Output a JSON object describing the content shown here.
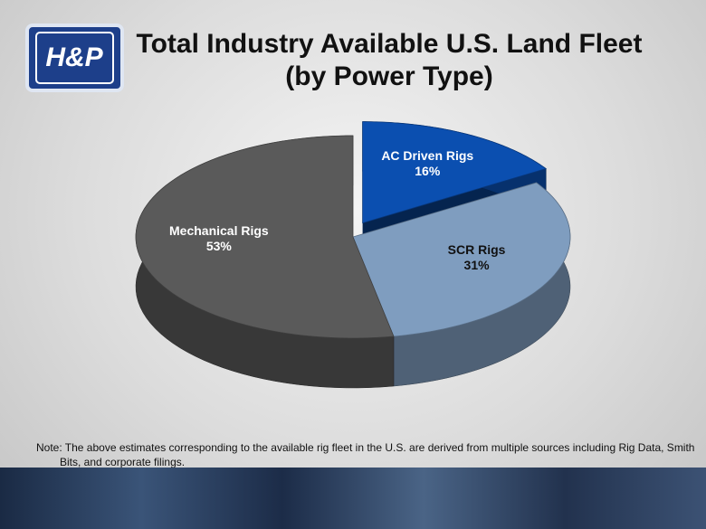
{
  "logo": "H&P",
  "chart_data": {
    "type": "pie3d",
    "title": "Total Industry Available U.S. Land Fleet",
    "subtitle": "(by Power Type)",
    "categories": [
      "AC Driven Rigs",
      "SCR Rigs",
      "Mechanical Rigs"
    ],
    "values": [
      16,
      31,
      53
    ],
    "value_labels": [
      "16%",
      "31%",
      "53%"
    ],
    "colors": [
      "#0b4fb0",
      "#7f9dbf",
      "#5a5a5a"
    ],
    "explode": [
      true,
      false,
      false
    ]
  },
  "note": "Note: The above estimates corresponding to the available rig fleet in the U.S. are derived from multiple sources including Rig Data, Smith Bits, and corporate filings."
}
